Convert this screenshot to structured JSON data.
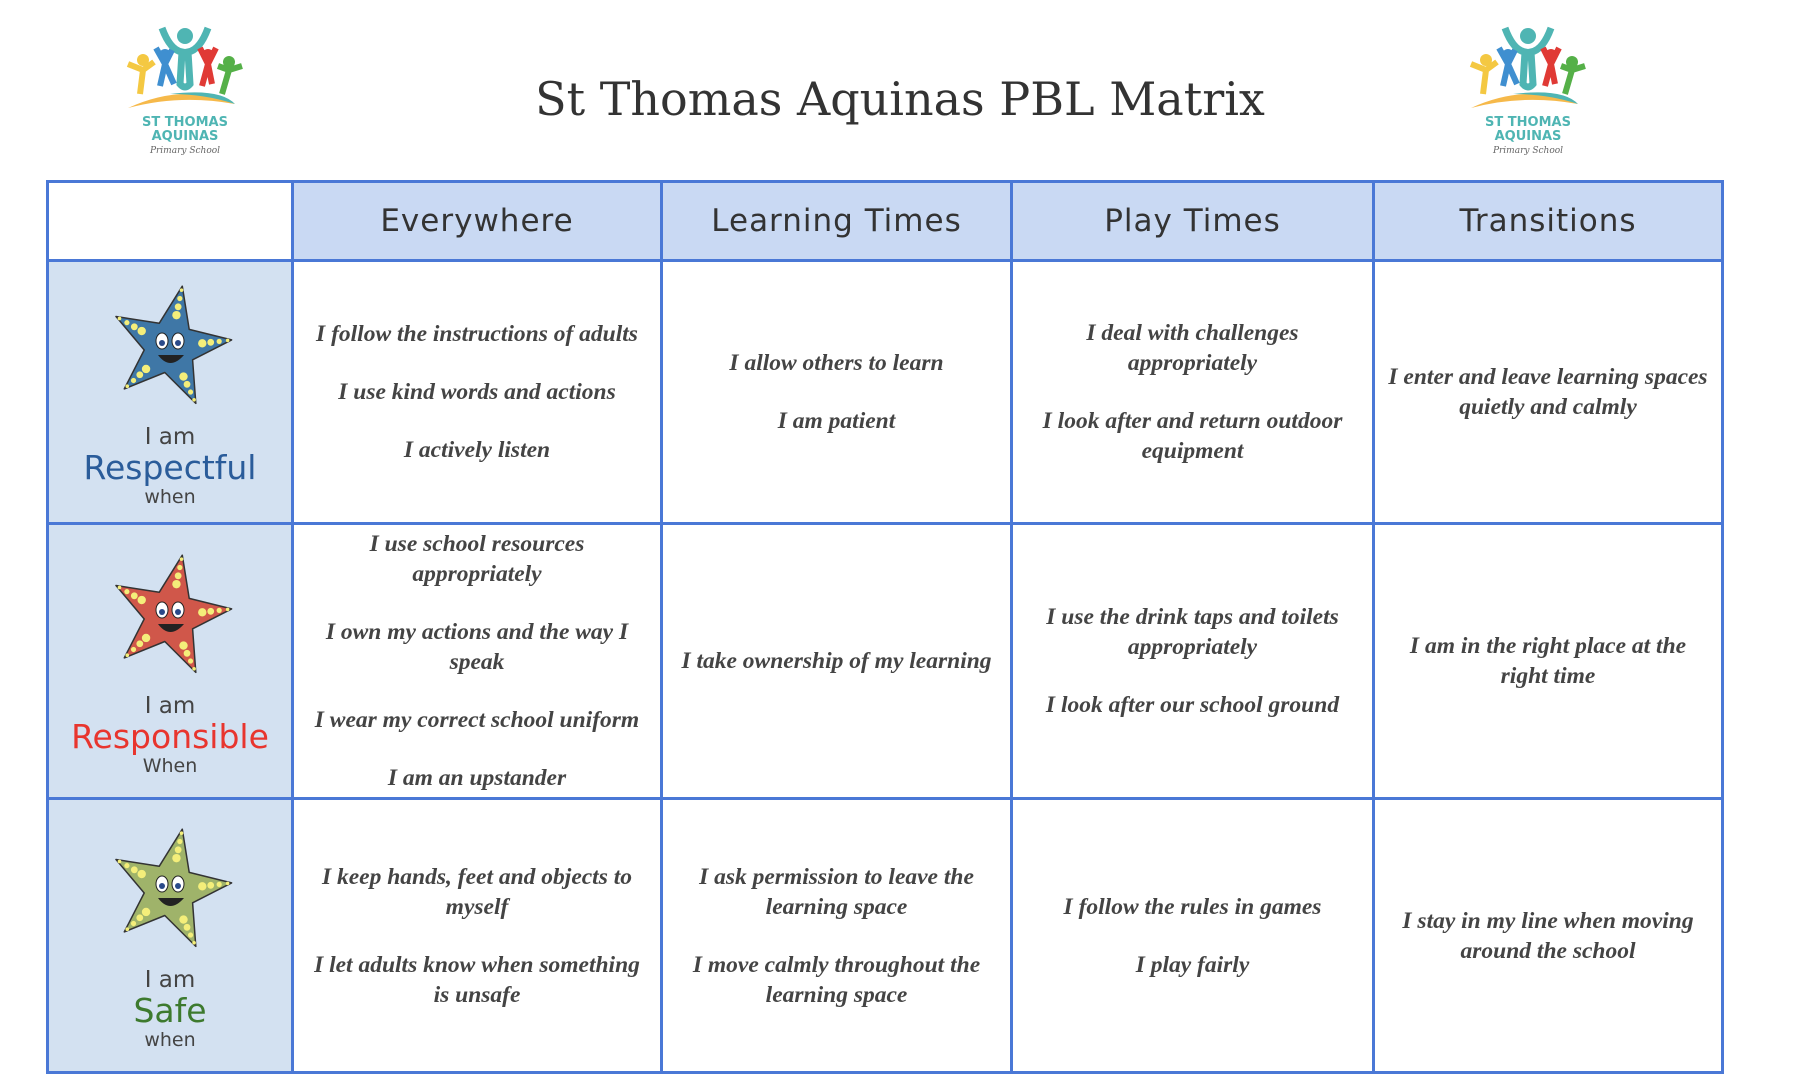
{
  "title": "St Thomas Aquinas PBL Matrix",
  "logo": {
    "text_line1": "ST THOMAS",
    "text_line2": "AQUINAS",
    "text_line3": "Primary School"
  },
  "columns": [
    "Everywhere",
    "Learning Times",
    "Play Times",
    "Transitions"
  ],
  "rows": [
    {
      "prefix": "I am",
      "value": "Respectful",
      "suffix": "when",
      "color": "#2a5c9a",
      "star_color": "#3f77a6",
      "star_label": "RESPECTFUL",
      "cells": [
        [
          "I follow the instructions of adults",
          "I use kind words and actions",
          "I actively listen"
        ],
        [
          "I allow others to learn",
          "I am patient"
        ],
        [
          "I deal with challenges appropriately",
          "I look after and return outdoor equipment"
        ],
        [
          "I enter and leave learning spaces quietly and calmly"
        ]
      ]
    },
    {
      "prefix": "I am",
      "value": "Responsible",
      "suffix": "When",
      "color": "#e8352e",
      "star_color": "#d0574a",
      "star_label": "RESPONSIBLE",
      "cells": [
        [
          "I use school resources appropriately",
          "I own my actions and the way I speak",
          "I wear my correct school uniform",
          "I am an upstander"
        ],
        [
          "I take ownership of my learning"
        ],
        [
          "I use the drink taps and toilets appropriately",
          "I look after our school ground"
        ],
        [
          "I am in the right place at the right time"
        ]
      ]
    },
    {
      "prefix": "I am",
      "value": "Safe",
      "suffix": "when",
      "color": "#3d7a2e",
      "star_color": "#9fb36a",
      "star_label": "SAFE",
      "cells": [
        [
          "I keep hands, feet and objects to myself",
          "I let adults know when something is unsafe"
        ],
        [
          "I ask permission to leave the learning space",
          "I move calmly throughout the learning space"
        ],
        [
          "I follow the rules in games",
          "I play fairly"
        ],
        [
          "I stay in my line when moving around the school"
        ]
      ]
    }
  ],
  "colors": {
    "border": "#4a78d6",
    "header_bg": "#c9d9f3",
    "side_bg": "#d3e1f1"
  }
}
